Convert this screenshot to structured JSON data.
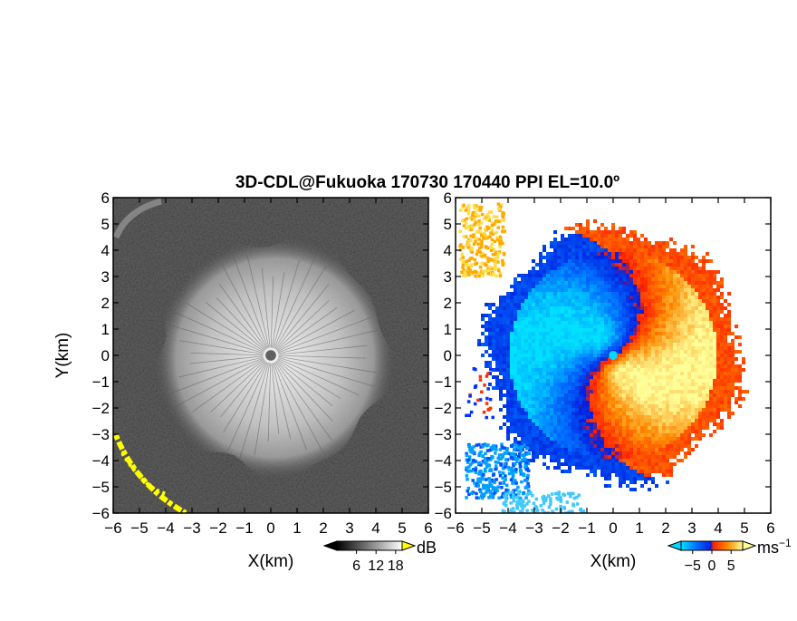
{
  "title": "3D-CDL@Fukuoka 170730 170440 PPI EL=10.0º",
  "chart_data": [
    {
      "type": "heatmap",
      "panel": "reflectivity",
      "colormap": "grayscale",
      "xlabel": "X(km)",
      "ylabel": "Y(km)",
      "xlim": [
        -6,
        6
      ],
      "ylim": [
        -6,
        6
      ],
      "xticks": [
        "−6",
        "−5",
        "−4",
        "−3",
        "−2",
        "−1",
        "0",
        "1",
        "2",
        "3",
        "4",
        "5",
        "6"
      ],
      "yticks": [
        "−6",
        "−5",
        "−4",
        "−3",
        "−2",
        "−1",
        "0",
        "1",
        "2",
        "3",
        "4",
        "5",
        "6"
      ],
      "colorbar": {
        "unit": "dB",
        "ticks": [
          "6",
          "12",
          "18"
        ],
        "tick_values": [
          6,
          12,
          18
        ],
        "range": [
          0,
          20
        ],
        "over_color": "#ffff00"
      },
      "features": {
        "bright_disk_radius_km": 4.0,
        "center_dot_radius_km": 0.2,
        "high_echo_color": "#ffff00",
        "high_echo_region": "lower-left"
      }
    },
    {
      "type": "heatmap",
      "panel": "doppler-velocity",
      "colormap": "diverging blue-red-yellow",
      "xlabel": "X(km)",
      "xlim": [
        -6,
        6
      ],
      "ylim": [
        -6,
        6
      ],
      "xticks": [
        "−6",
        "−5",
        "−4",
        "−3",
        "−2",
        "−1",
        "0",
        "1",
        "2",
        "3",
        "4",
        "5",
        "6"
      ],
      "yticks": [
        "−6",
        "−5",
        "−4",
        "−3",
        "−2",
        "−1",
        "0",
        "1",
        "2",
        "3",
        "4",
        "5",
        "6"
      ],
      "colorbar": {
        "unit": "ms",
        "unit_exponent": "−1",
        "ticks": [
          "−5",
          "0",
          "5"
        ],
        "tick_values": [
          -5,
          0,
          5
        ],
        "range": [
          -8,
          8
        ],
        "under_color": "#00d8ff",
        "over_color": "#ffff99"
      },
      "features": {
        "vortex_outer_radius_km": 4.5,
        "approach_color": "#0044ff",
        "recede_color": "#ff8800",
        "center_color": "#00d8ff"
      }
    }
  ]
}
